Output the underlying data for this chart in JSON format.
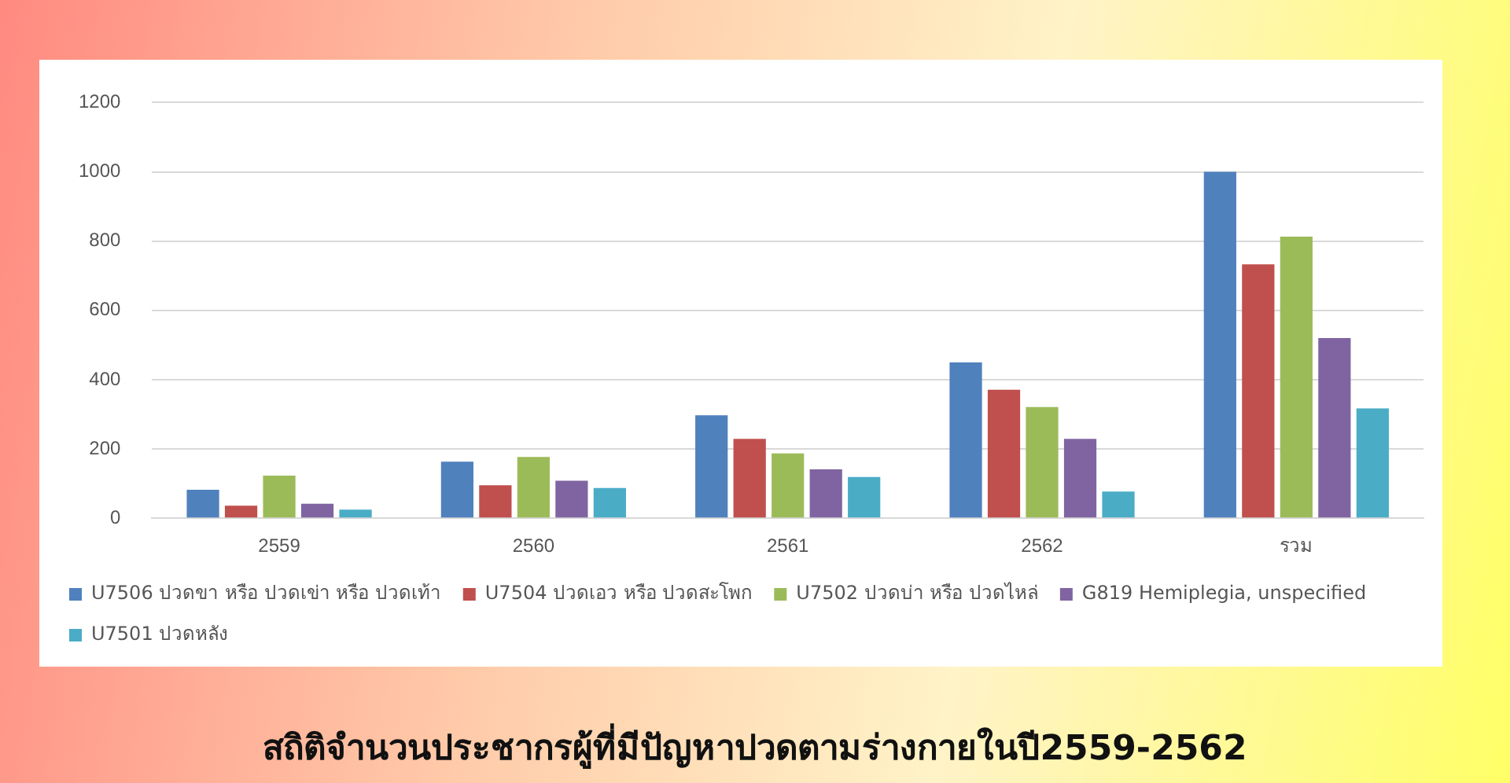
{
  "chart_data": {
    "type": "bar",
    "title": "สถิติจำนวนประชากรผู้ที่มีปัญหาปวดตามร่างกายในปี2559-2562",
    "categories": [
      "2559",
      "2560",
      "2561",
      "2562",
      "รวม"
    ],
    "series": [
      {
        "name": "U7506 ปวดขา หรือ ปวดเข่า หรือ ปวดเท้า",
        "color": "#4f81bd",
        "values": [
          82,
          163,
          297,
          450,
          1000
        ]
      },
      {
        "name": "U7504 ปวดเอว หรือ ปวดสะโพก",
        "color": "#c0504d",
        "values": [
          36,
          95,
          229,
          371,
          733
        ]
      },
      {
        "name": "U7502 ปวดบ่า หรือ ปวดไหล่",
        "color": "#9bbb59",
        "values": [
          123,
          177,
          187,
          321,
          813
        ]
      },
      {
        "name": "G819 Hemiplegia, unspecified",
        "color": "#8064a2",
        "values": [
          42,
          108,
          141,
          229,
          520
        ]
      },
      {
        "name": "U7501 ปวดหลัง",
        "color": "#4bacc6",
        "values": [
          25,
          87,
          119,
          77,
          317
        ]
      }
    ],
    "ylim": [
      0,
      1200
    ],
    "yticks": [
      0,
      200,
      400,
      600,
      800,
      1000,
      1200
    ],
    "grid": "y",
    "legend": "bottom"
  }
}
